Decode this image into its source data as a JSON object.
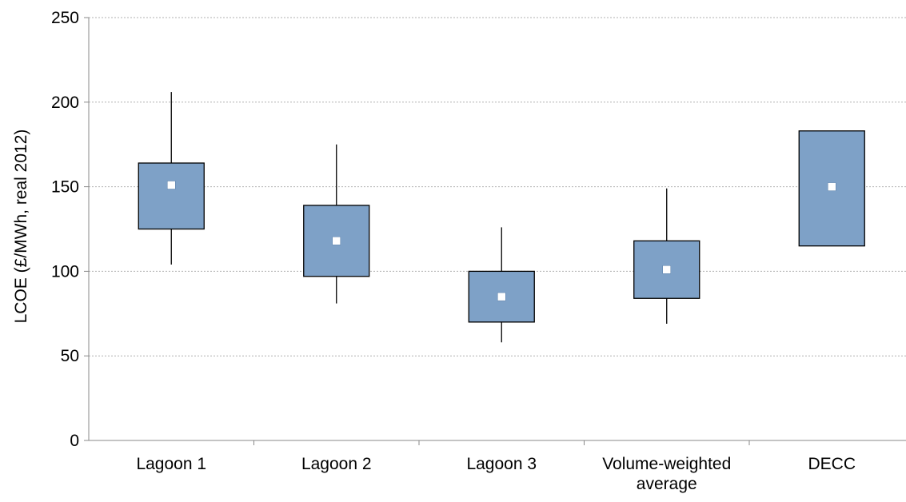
{
  "chart_data": {
    "type": "box",
    "title": "",
    "xlabel": "",
    "ylabel": "LCOE (£/MWh, real 2012)",
    "ylim": [
      0,
      250
    ],
    "yticks": [
      0,
      50,
      100,
      150,
      200,
      250
    ],
    "grid": true,
    "categories": [
      [
        "Lagoon 1"
      ],
      [
        "Lagoon 2"
      ],
      [
        "Lagoon 3"
      ],
      [
        "Volume-weighted",
        "average"
      ],
      [
        "DECC"
      ]
    ],
    "boxes": [
      {
        "whisker_low": 104,
        "box_low": 125,
        "median": 151,
        "box_high": 164,
        "whisker_high": 206
      },
      {
        "whisker_low": 81,
        "box_low": 97,
        "median": 118,
        "box_high": 139,
        "whisker_high": 175
      },
      {
        "whisker_low": 58,
        "box_low": 70,
        "median": 85,
        "box_high": 100,
        "whisker_high": 126
      },
      {
        "whisker_low": 69,
        "box_low": 84,
        "median": 101,
        "box_high": 118,
        "whisker_high": 149
      },
      {
        "whisker_low": null,
        "box_low": 115,
        "median": 150,
        "box_high": 183,
        "whisker_high": null
      }
    ],
    "colors": {
      "box_fill": "#7ea1c7",
      "box_stroke": "#000000",
      "marker": "#ffffff",
      "grid": "#b0b0b0",
      "axis": "#888888"
    }
  }
}
